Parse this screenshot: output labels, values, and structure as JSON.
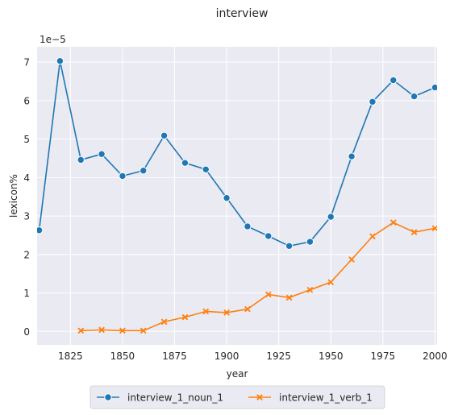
{
  "chart_data": {
    "type": "line",
    "title": "interview",
    "xlabel": "year",
    "ylabel": "lexicon%",
    "y_exponent_label": "1e−5",
    "xlim": [
      1809,
      2001
    ],
    "ylim": [
      -0.35,
      7.4
    ],
    "x_ticks": [
      1825,
      1850,
      1875,
      1900,
      1925,
      1950,
      1975,
      2000
    ],
    "y_ticks": [
      0,
      1,
      2,
      3,
      4,
      5,
      6,
      7
    ],
    "grid": true,
    "legend_position": "bottom-center",
    "series": [
      {
        "name": "interview_1_noun_1",
        "color": "#1f77b4",
        "marker": "circle",
        "x": [
          1810,
          1820,
          1830,
          1840,
          1850,
          1860,
          1870,
          1880,
          1890,
          1900,
          1910,
          1920,
          1930,
          1940,
          1950,
          1960,
          1970,
          1980,
          1990,
          2000
        ],
        "y": [
          2.63,
          7.03,
          4.46,
          4.61,
          4.04,
          4.18,
          5.09,
          4.38,
          4.21,
          3.47,
          2.73,
          2.48,
          2.22,
          2.33,
          2.98,
          4.55,
          5.97,
          6.53,
          6.11,
          6.34
        ]
      },
      {
        "name": "interview_1_verb_1",
        "color": "#ff7f0e",
        "marker": "x",
        "x": [
          1830,
          1840,
          1850,
          1860,
          1870,
          1880,
          1890,
          1900,
          1910,
          1920,
          1930,
          1940,
          1950,
          1960,
          1970,
          1980,
          1990,
          2000
        ],
        "y": [
          0.02,
          0.04,
          0.02,
          0.02,
          0.25,
          0.37,
          0.52,
          0.49,
          0.58,
          0.96,
          0.88,
          1.08,
          1.28,
          1.87,
          2.47,
          2.83,
          2.58,
          2.68
        ]
      }
    ]
  }
}
